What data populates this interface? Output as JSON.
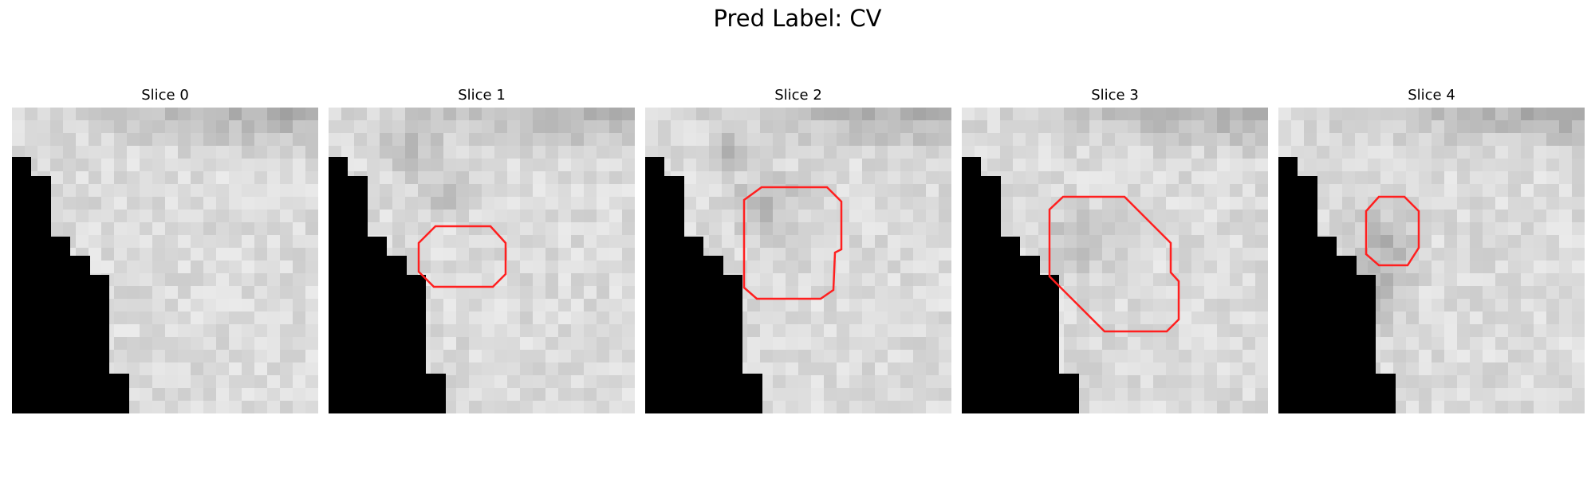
{
  "figure": {
    "title": "Pred Label: CV"
  },
  "slices": [
    {
      "title": "Slice 0",
      "contour": false
    },
    {
      "title": "Slice 1",
      "contour": true
    },
    {
      "title": "Slice 2",
      "contour": true
    },
    {
      "title": "Slice 3",
      "contour": true
    },
    {
      "title": "Slice 4",
      "contour": true
    }
  ],
  "colors": {
    "contour": "#ff1f1f",
    "mask": "#000000",
    "background": "#ffffff"
  }
}
